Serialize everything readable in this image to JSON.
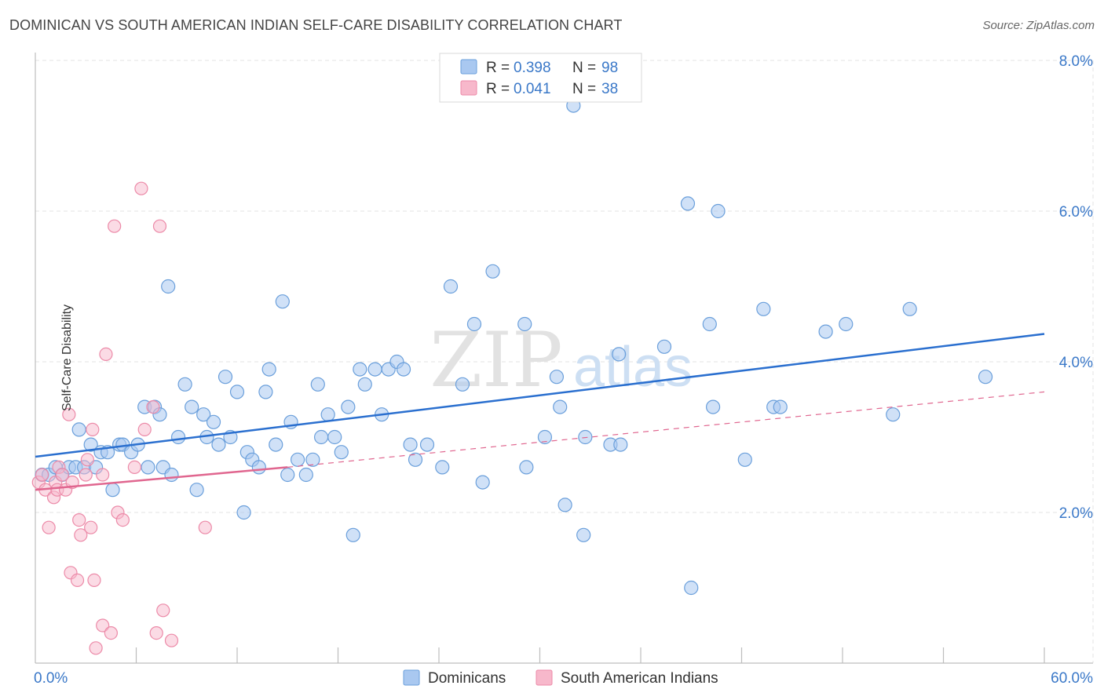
{
  "header": {
    "title": "DOMINICAN VS SOUTH AMERICAN INDIAN SELF-CARE DISABILITY CORRELATION CHART",
    "source": "Source: ZipAtlas.com"
  },
  "watermark": {
    "zip": "ZIP",
    "atlas": "atlas"
  },
  "legend_top": {
    "rows": [
      {
        "r_label": "R =",
        "r_value": "0.398",
        "n_label": "N =",
        "n_value": "98"
      },
      {
        "r_label": "R =",
        "r_value": "0.041",
        "n_label": "N =",
        "n_value": "38"
      }
    ]
  },
  "legend_bottom": [
    "Dominicans",
    "South American Indians"
  ],
  "colors": {
    "blue_fill": "#a9c8f0",
    "blue_stroke": "#6a9fdb",
    "blue_line": "#2a6fcf",
    "pink_fill": "#f7b8cb",
    "pink_stroke": "#ec8aa8",
    "pink_line": "#e0668f",
    "tick_text": "#3a78c8",
    "grid": "#e3e3e3"
  },
  "chart_data": {
    "type": "scatter",
    "title": "DOMINICAN VS SOUTH AMERICAN INDIAN SELF-CARE DISABILITY CORRELATION CHART",
    "xlabel": "",
    "ylabel": "Self-Care Disability",
    "xlim": [
      0,
      60
    ],
    "ylim": [
      0,
      8
    ],
    "x_tick_labels": [
      "0.0%",
      "60.0%"
    ],
    "y_tick_labels": [
      "2.0%",
      "4.0%",
      "6.0%",
      "8.0%"
    ],
    "y_ticks": [
      2,
      4,
      6,
      8
    ],
    "legend_placement": "top-center",
    "series": [
      {
        "name": "Dominicans",
        "r": 0.398,
        "n": 98,
        "trend": {
          "x": [
            0,
            60
          ],
          "y": [
            2.74,
            4.37
          ]
        },
        "points": [
          [
            0.4,
            2.5
          ],
          [
            0.8,
            2.5
          ],
          [
            1.2,
            2.6
          ],
          [
            1.6,
            2.5
          ],
          [
            2.0,
            2.6
          ],
          [
            2.4,
            2.6
          ],
          [
            2.6,
            3.1
          ],
          [
            2.9,
            2.6
          ],
          [
            3.3,
            2.9
          ],
          [
            3.6,
            2.6
          ],
          [
            3.9,
            2.8
          ],
          [
            4.3,
            2.8
          ],
          [
            4.6,
            2.3
          ],
          [
            5.0,
            2.9
          ],
          [
            5.2,
            2.9
          ],
          [
            5.7,
            2.8
          ],
          [
            6.1,
            2.9
          ],
          [
            6.5,
            3.4
          ],
          [
            6.7,
            2.6
          ],
          [
            7.1,
            3.4
          ],
          [
            7.4,
            3.3
          ],
          [
            7.6,
            2.6
          ],
          [
            7.9,
            5.0
          ],
          [
            8.1,
            2.5
          ],
          [
            8.5,
            3.0
          ],
          [
            8.9,
            3.7
          ],
          [
            9.3,
            3.4
          ],
          [
            9.6,
            2.3
          ],
          [
            10.0,
            3.3
          ],
          [
            10.2,
            3.0
          ],
          [
            10.6,
            3.2
          ],
          [
            10.9,
            2.9
          ],
          [
            11.3,
            3.8
          ],
          [
            11.6,
            3.0
          ],
          [
            12.0,
            3.6
          ],
          [
            12.4,
            2.0
          ],
          [
            12.6,
            2.8
          ],
          [
            12.9,
            2.7
          ],
          [
            13.3,
            2.6
          ],
          [
            13.7,
            3.6
          ],
          [
            13.9,
            3.9
          ],
          [
            14.3,
            2.9
          ],
          [
            14.7,
            4.8
          ],
          [
            15.0,
            2.5
          ],
          [
            15.2,
            3.2
          ],
          [
            15.6,
            2.7
          ],
          [
            16.1,
            2.5
          ],
          [
            16.5,
            2.7
          ],
          [
            16.8,
            3.7
          ],
          [
            17.4,
            3.3
          ],
          [
            17.0,
            3.0
          ],
          [
            17.8,
            3.0
          ],
          [
            18.2,
            2.8
          ],
          [
            18.6,
            3.4
          ],
          [
            18.9,
            1.7
          ],
          [
            19.3,
            3.9
          ],
          [
            19.6,
            3.7
          ],
          [
            20.2,
            3.9
          ],
          [
            20.6,
            3.3
          ],
          [
            21.0,
            3.9
          ],
          [
            21.5,
            4.0
          ],
          [
            21.9,
            3.9
          ],
          [
            22.3,
            2.9
          ],
          [
            22.6,
            2.7
          ],
          [
            23.3,
            2.9
          ],
          [
            24.2,
            2.6
          ],
          [
            24.7,
            5.0
          ],
          [
            25.4,
            3.7
          ],
          [
            26.1,
            4.5
          ],
          [
            26.6,
            2.4
          ],
          [
            27.2,
            5.2
          ],
          [
            29.1,
            4.5
          ],
          [
            29.2,
            2.6
          ],
          [
            30.3,
            3.0
          ],
          [
            31.0,
            3.8
          ],
          [
            31.2,
            3.4
          ],
          [
            31.5,
            2.1
          ],
          [
            32.0,
            7.4
          ],
          [
            32.6,
            1.7
          ],
          [
            32.7,
            3.0
          ],
          [
            34.2,
            2.9
          ],
          [
            34.7,
            4.1
          ],
          [
            34.8,
            2.9
          ],
          [
            37.4,
            4.2
          ],
          [
            38.8,
            6.1
          ],
          [
            39.0,
            1.0
          ],
          [
            40.1,
            4.5
          ],
          [
            40.3,
            3.4
          ],
          [
            40.6,
            6.0
          ],
          [
            42.2,
            2.7
          ],
          [
            43.3,
            4.7
          ],
          [
            43.9,
            3.4
          ],
          [
            44.3,
            3.4
          ],
          [
            47.0,
            4.4
          ],
          [
            48.2,
            4.5
          ],
          [
            51.0,
            3.3
          ],
          [
            52.0,
            4.7
          ],
          [
            56.5,
            3.8
          ]
        ]
      },
      {
        "name": "South American Indians",
        "r": 0.041,
        "n": 38,
        "trend": {
          "x": [
            0,
            15
          ],
          "y": [
            2.3,
            2.6
          ]
        },
        "trend_dashed_extension": {
          "x": [
            15,
            60
          ],
          "y": [
            2.6,
            3.6
          ]
        },
        "points": [
          [
            0.2,
            2.4
          ],
          [
            0.4,
            2.5
          ],
          [
            0.6,
            2.3
          ],
          [
            0.8,
            1.8
          ],
          [
            1.1,
            2.2
          ],
          [
            1.2,
            2.4
          ],
          [
            1.3,
            2.3
          ],
          [
            1.4,
            2.6
          ],
          [
            1.6,
            2.5
          ],
          [
            1.8,
            2.3
          ],
          [
            2.0,
            3.3
          ],
          [
            2.1,
            1.2
          ],
          [
            2.2,
            2.4
          ],
          [
            2.5,
            1.1
          ],
          [
            2.6,
            1.9
          ],
          [
            2.7,
            1.7
          ],
          [
            3.0,
            2.5
          ],
          [
            3.1,
            2.7
          ],
          [
            3.3,
            1.8
          ],
          [
            3.4,
            3.1
          ],
          [
            3.5,
            1.1
          ],
          [
            3.6,
            0.2
          ],
          [
            4.0,
            0.5
          ],
          [
            4.0,
            2.5
          ],
          [
            4.2,
            4.1
          ],
          [
            4.5,
            0.4
          ],
          [
            4.7,
            5.8
          ],
          [
            4.9,
            2.0
          ],
          [
            5.2,
            1.9
          ],
          [
            5.9,
            2.6
          ],
          [
            6.3,
            6.3
          ],
          [
            6.5,
            3.1
          ],
          [
            7.0,
            3.4
          ],
          [
            7.2,
            0.4
          ],
          [
            7.4,
            5.8
          ],
          [
            7.6,
            0.7
          ],
          [
            8.1,
            0.3
          ],
          [
            10.1,
            1.8
          ]
        ]
      }
    ]
  }
}
